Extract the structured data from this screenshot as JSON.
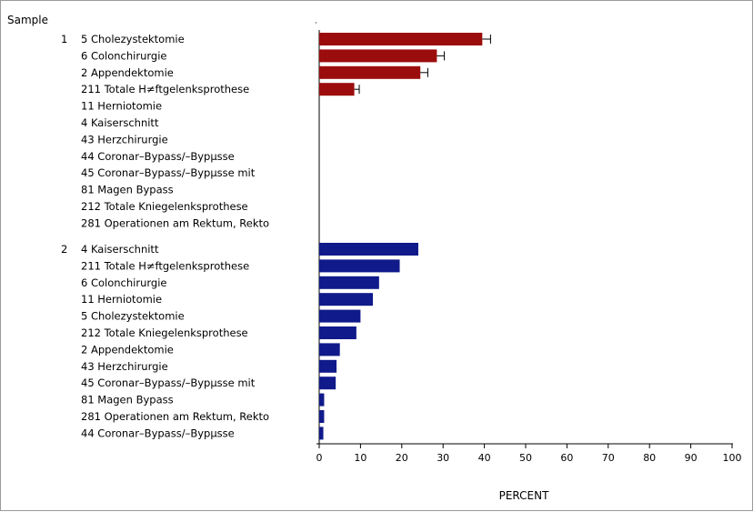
{
  "chart_data": {
    "type": "bar",
    "orientation": "horizontal",
    "group_axis_label": "Sample",
    "xlabel": "PERCENT",
    "xlim": [
      0,
      100
    ],
    "x_ticks": [
      "0",
      "10",
      "20",
      "30",
      "40",
      "50",
      "60",
      "70",
      "80",
      "90",
      "100"
    ],
    "error_bars": true,
    "groups": [
      {
        "label": "1",
        "color": "#9b0d0d",
        "categories": [
          "5 Cholezystektomie",
          "6 Colonchirurgie",
          "2 Appendektomie",
          "211 Totale H≠ftgelenksprothese",
          "11 Herniotomie",
          "4 Kaiserschnitt",
          "43 Herzchirurgie",
          "44 Coronar–Bypass/–Bypμsse",
          "45 Coronar–Bypass/–Bypμsse mit",
          "81 Magen Bypass",
          "212 Totale Kniegelenksprothese",
          "281 Operationen am Rektum, Rekto"
        ],
        "values": [
          39.5,
          28.5,
          24.5,
          8.5,
          0,
          0,
          0,
          0,
          0,
          0,
          0,
          0
        ],
        "errors": [
          2.0,
          1.8,
          1.8,
          1.2,
          0,
          0,
          0,
          0,
          0,
          0,
          0,
          0
        ]
      },
      {
        "label": "2",
        "color": "#101a8a",
        "categories": [
          "4 Kaiserschnitt",
          "211 Totale H≠ftgelenksprothese",
          "6 Colonchirurgie",
          "11 Herniotomie",
          "5 Cholezystektomie",
          "212 Totale Kniegelenksprothese",
          "2 Appendektomie",
          "43 Herzchirurgie",
          "45 Coronar–Bypass/–Bypμsse mit",
          "81 Magen Bypass",
          "281 Operationen am Rektum, Rekto",
          "44 Coronar–Bypass/–Bypμsse"
        ],
        "values": [
          24,
          19.5,
          14.5,
          13,
          10,
          9,
          5,
          4.2,
          4,
          1.2,
          1.2,
          1.0
        ],
        "errors": []
      }
    ]
  }
}
